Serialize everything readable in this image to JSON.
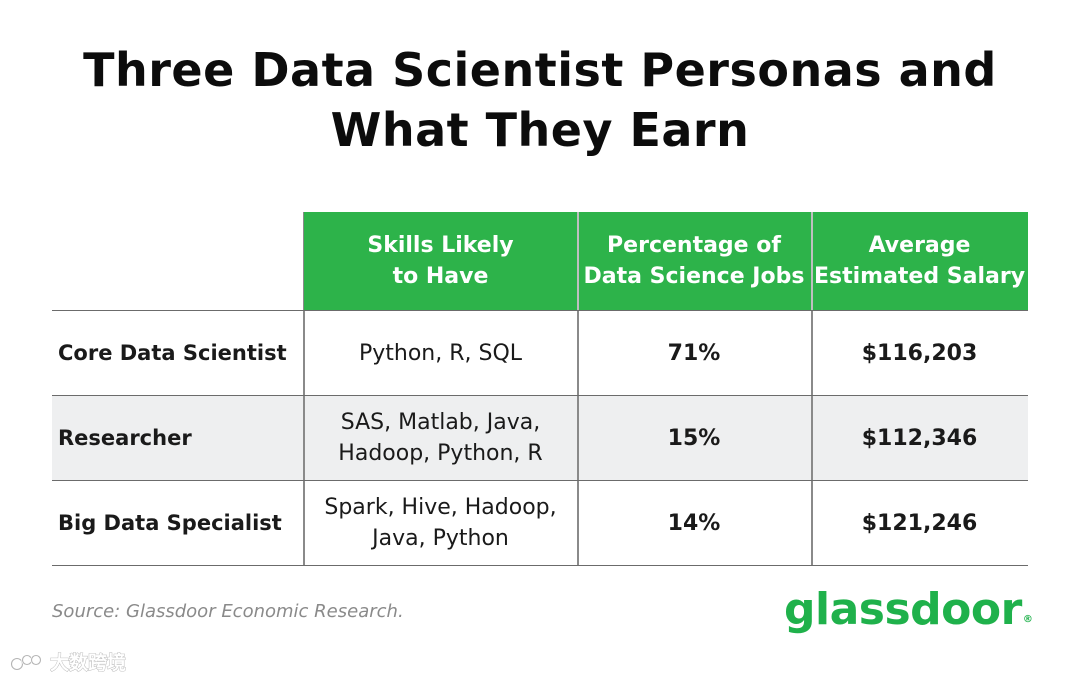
{
  "title": {
    "line1": "Three Data Scientist Personas and",
    "line2": "What They Earn"
  },
  "chart_data": {
    "type": "table",
    "columns": [
      "",
      "Skills Likely\nto Have",
      "Percentage of\nData Science Jobs",
      "Average\nEstimated Salary"
    ],
    "rows": [
      {
        "persona": "Core Data Scientist",
        "skills": "Python, R, SQL",
        "percentage": "71%",
        "salary": "$116,203"
      },
      {
        "persona": "Researcher",
        "skills": "SAS, Matlab, Java,\nHadoop, Python, R",
        "percentage": "15%",
        "salary": "$112,346"
      },
      {
        "persona": "Big Data Specialist",
        "skills": "Spark, Hive, Hadoop,\nJava, Python",
        "percentage": "14%",
        "salary": "$121,246"
      }
    ]
  },
  "source": "Source: Glassdoor Economic Research.",
  "logo": {
    "text": "glassdoor",
    "mark": "®"
  },
  "colors": {
    "header_green": "#2db34a",
    "logo_green": "#1fb14b",
    "row_shade": "#eeeff0"
  },
  "watermark": {
    "icon": "watermark-logo-icon",
    "text": "大数跨境"
  }
}
